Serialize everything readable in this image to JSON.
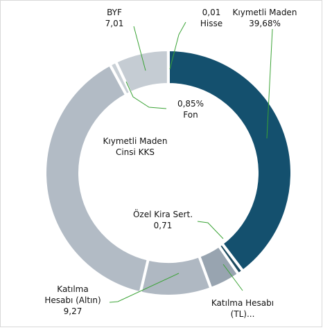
{
  "chart_data": {
    "type": "donut",
    "center_label": "Kıymetli Maden Cinsi KKS",
    "categories": [
      "Kıymetli Maden",
      "Özel Kira Sert.",
      "Katılma Hesabı (TL)...",
      "Katılma Hesabı (Altın)",
      null,
      "Fon",
      "BYF",
      "Hisse"
    ],
    "values": [
      39.68,
      0.71,
      4.0,
      9.27,
      38.47,
      0.85,
      7.01,
      0.01
    ],
    "value_labels": [
      "39,68%",
      "0,71",
      null,
      "9,27",
      null,
      "0,85%",
      "7,01",
      "0,01"
    ],
    "colors": [
      "#14506e",
      "#1d4a5f",
      "#98a4b0",
      "#afb8c2",
      "#b2bbc5",
      "#c9d0d6",
      "#c5ccd3",
      "#e3e7ea"
    ]
  }
}
